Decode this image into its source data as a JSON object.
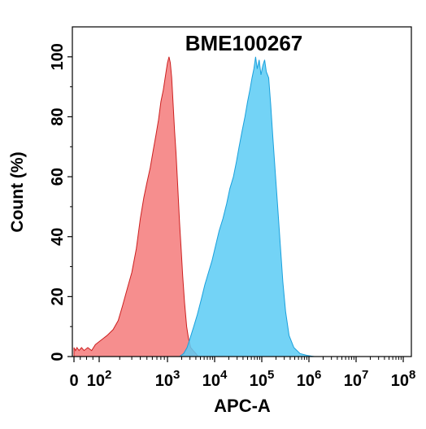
{
  "chart_data": {
    "type": "area",
    "title": "BME100267",
    "xlabel": "APC-A",
    "ylabel": "Count  (%)",
    "x_scale": "biexponential",
    "x_ticks": [
      {
        "value": 0,
        "label": "0"
      },
      {
        "value": 100,
        "label": "10",
        "exp": "2"
      },
      {
        "value": 1000,
        "label": "10",
        "exp": "3"
      },
      {
        "value": 10000,
        "label": "10",
        "exp": "4"
      },
      {
        "value": 100000,
        "label": "10",
        "exp": "5"
      },
      {
        "value": 1000000,
        "label": "10",
        "exp": "6"
      },
      {
        "value": 10000000,
        "label": "10",
        "exp": "7"
      },
      {
        "value": 100000000,
        "label": "10",
        "exp": "8"
      }
    ],
    "y_ticks": [
      0,
      20,
      40,
      60,
      80,
      100
    ],
    "ylim": [
      0,
      110
    ],
    "grid": false,
    "series": [
      {
        "color": "#f57a7a",
        "stroke": "#cc2020",
        "points": [
          [
            0,
            3
          ],
          [
            6,
            2
          ],
          [
            12,
            3
          ],
          [
            20,
            2
          ],
          [
            30,
            3
          ],
          [
            40,
            2
          ],
          [
            55,
            3
          ],
          [
            70,
            2
          ],
          [
            85,
            4
          ],
          [
            100,
            5
          ],
          [
            130,
            7
          ],
          [
            160,
            9
          ],
          [
            190,
            12
          ],
          [
            220,
            17
          ],
          [
            260,
            23
          ],
          [
            300,
            28
          ],
          [
            350,
            36
          ],
          [
            400,
            46
          ],
          [
            450,
            53
          ],
          [
            500,
            58
          ],
          [
            560,
            63
          ],
          [
            620,
            69
          ],
          [
            680,
            74
          ],
          [
            740,
            79
          ],
          [
            800,
            85
          ],
          [
            870,
            89
          ],
          [
            940,
            94
          ],
          [
            1000,
            98
          ],
          [
            1080,
            100
          ],
          [
            1150,
            98
          ],
          [
            1230,
            93
          ],
          [
            1320,
            84
          ],
          [
            1420,
            75
          ],
          [
            1520,
            68
          ],
          [
            1650,
            57
          ],
          [
            1800,
            45
          ],
          [
            1950,
            36
          ],
          [
            2100,
            27
          ],
          [
            2300,
            18
          ],
          [
            2550,
            10
          ],
          [
            2800,
            6
          ],
          [
            3100,
            3
          ],
          [
            3500,
            2
          ],
          [
            4000,
            1
          ],
          [
            4500,
            0
          ]
        ]
      },
      {
        "color": "#5bcbf5",
        "stroke": "#1aa0dc",
        "points": [
          [
            1800,
            0
          ],
          [
            2200,
            1
          ],
          [
            2600,
            3
          ],
          [
            3000,
            6
          ],
          [
            3600,
            10
          ],
          [
            4300,
            14
          ],
          [
            5200,
            19
          ],
          [
            6200,
            24
          ],
          [
            7400,
            28
          ],
          [
            8800,
            32
          ],
          [
            10500,
            37
          ],
          [
            12500,
            42
          ],
          [
            15000,
            46
          ],
          [
            18000,
            51
          ],
          [
            21000,
            56
          ],
          [
            25000,
            60
          ],
          [
            29000,
            65
          ],
          [
            33000,
            70
          ],
          [
            38000,
            75
          ],
          [
            44000,
            80
          ],
          [
            50000,
            85
          ],
          [
            56000,
            89
          ],
          [
            62000,
            93
          ],
          [
            68000,
            96
          ],
          [
            74000,
            100
          ],
          [
            80000,
            96
          ],
          [
            88000,
            99
          ],
          [
            96000,
            94
          ],
          [
            105000,
            97
          ],
          [
            115000,
            99
          ],
          [
            125000,
            95
          ],
          [
            140000,
            93
          ],
          [
            155000,
            84
          ],
          [
            170000,
            74
          ],
          [
            190000,
            63
          ],
          [
            215000,
            51
          ],
          [
            245000,
            38
          ],
          [
            280000,
            25
          ],
          [
            320000,
            15
          ],
          [
            380000,
            7
          ],
          [
            480000,
            3
          ],
          [
            650000,
            1
          ],
          [
            900000,
            0.4
          ],
          [
            1300000,
            0
          ]
        ]
      }
    ]
  }
}
